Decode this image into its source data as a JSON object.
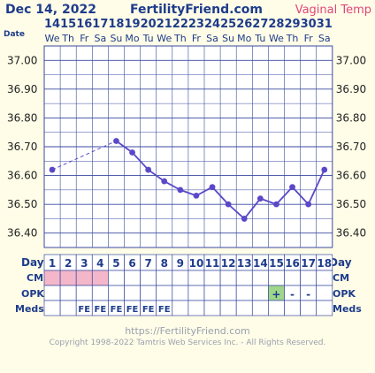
{
  "header": {
    "date": "Dec 14, 2022",
    "brand": "FertilityFriend.com",
    "temp_type": "Vaginal Temp",
    "date_row_label": "Date"
  },
  "dates": [
    "14",
    "15",
    "16",
    "17",
    "18",
    "19",
    "20",
    "21",
    "22",
    "23",
    "24",
    "25",
    "26",
    "27",
    "28",
    "29",
    "30",
    "31"
  ],
  "weekdays": [
    "We",
    "Th",
    "Fr",
    "Sa",
    "Su",
    "Mo",
    "Tu",
    "We",
    "Th",
    "Fr",
    "Sa",
    "Su",
    "Mo",
    "Tu",
    "We",
    "Th",
    "Fr",
    "Sa"
  ],
  "rows": {
    "day_label": "Day",
    "cm_label": "CM",
    "opk_label": "OPK",
    "meds_label": "Meds"
  },
  "days": [
    "1",
    "2",
    "3",
    "4",
    "5",
    "6",
    "7",
    "8",
    "9",
    "10",
    "11",
    "12",
    "13",
    "14",
    "15",
    "16",
    "17",
    "18"
  ],
  "cm": [
    "pink",
    "pink",
    "pink",
    "pink",
    "",
    "",
    "",
    "",
    "",
    "",
    "",
    "",
    "",
    "",
    "",
    "",
    "",
    ""
  ],
  "opk": [
    "",
    "",
    "",
    "",
    "",
    "",
    "",
    "",
    "",
    "",
    "",
    "",
    "",
    "",
    "+",
    "-",
    "-",
    ""
  ],
  "opk_positive_color": "#9fd68a",
  "cm_color": "#f4b6c9",
  "meds": [
    "",
    "",
    "FE",
    "FE",
    "FE",
    "FE",
    "FE",
    "FE",
    "",
    "",
    "",
    "",
    "",
    "",
    "",
    "",
    "",
    ""
  ],
  "chart_data": {
    "type": "line",
    "x": [
      1,
      2,
      3,
      4,
      5,
      6,
      7,
      8,
      9,
      10,
      11,
      12,
      13,
      14,
      15,
      16,
      17,
      18
    ],
    "series": [
      {
        "values": [
          36.62,
          null,
          null,
          null,
          36.72,
          36.68,
          36.62,
          36.58,
          36.55,
          36.53,
          36.56,
          36.5,
          36.45,
          36.52,
          36.5,
          36.56,
          36.5,
          36.62
        ],
        "color": "#5a48c8"
      }
    ],
    "ylim": [
      36.35,
      37.05
    ],
    "yticks": [
      "37.00",
      "36.90",
      "36.80",
      "36.70",
      "36.60",
      "36.50",
      "36.40"
    ],
    "grid": true
  },
  "footer": {
    "url": "https://FertilityFriend.com",
    "copyright": "Copyright 1998-2022 Tamtris Web Services Inc. - All Rights Reserved."
  }
}
